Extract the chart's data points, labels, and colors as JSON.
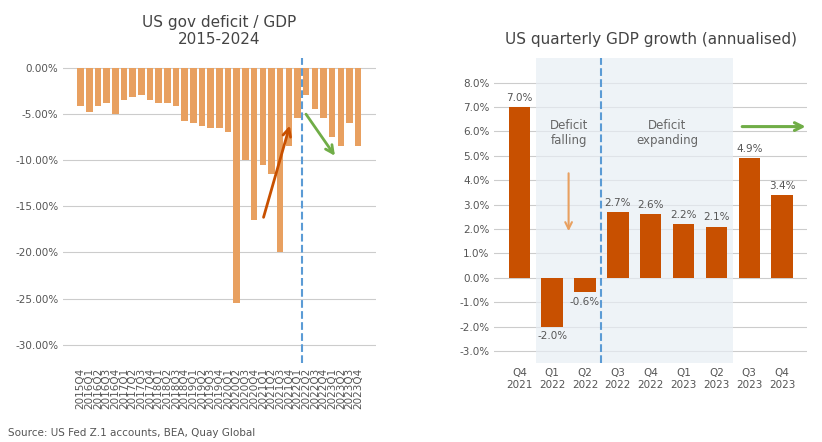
{
  "left_title": "US gov deficit / GDP\n2015-2024",
  "right_title": "US quarterly GDP growth (annualised)",
  "source_text": "Source: US Fed Z.1 accounts, BEA, Quay Global",
  "bar_color_left": "#E8A060",
  "bar_color_right": "#C85000",
  "left_categories": [
    "2015Q4",
    "2016Q1",
    "2016Q2",
    "2016Q3",
    "2016Q4",
    "2017Q1",
    "2017Q2",
    "2017Q3",
    "2017Q4",
    "2018Q1",
    "2018Q2",
    "2018Q3",
    "2018Q4",
    "2019Q1",
    "2019Q2",
    "2019Q3",
    "2019Q4",
    "2020Q1",
    "2020Q2",
    "2020Q3",
    "2020Q4",
    "2021Q1",
    "2021Q2",
    "2021Q3",
    "2021Q4",
    "2022Q1",
    "2022Q2",
    "2022Q3",
    "2022Q4",
    "2023Q1",
    "2023Q2",
    "2023Q3",
    "2023Q4"
  ],
  "left_values": [
    -4.2,
    -4.8,
    -4.2,
    -3.8,
    -5.0,
    -3.5,
    -3.2,
    -3.0,
    -3.5,
    -3.8,
    -3.8,
    -4.2,
    -5.8,
    -6.0,
    -6.3,
    -6.5,
    -6.5,
    -7.0,
    -25.5,
    -10.0,
    -16.5,
    -10.5,
    -11.5,
    -20.0,
    -8.5,
    -5.5,
    -3.0,
    -4.5,
    -5.5,
    -7.5,
    -8.5,
    -6.0,
    -8.5
  ],
  "left_ylim": [
    -32,
    1
  ],
  "left_yticks": [
    0,
    -5,
    -10,
    -15,
    -20,
    -25,
    -30
  ],
  "right_categories": [
    "Q4\n2021",
    "Q1\n2022",
    "Q2\n2022",
    "Q3\n2022",
    "Q4\n2022",
    "Q1\n2023",
    "Q2\n2023",
    "Q3\n2023",
    "Q4\n2023"
  ],
  "right_values": [
    7.0,
    -2.0,
    -0.6,
    2.7,
    2.6,
    2.2,
    2.1,
    4.9,
    3.4
  ],
  "right_labels": [
    "7.0%",
    "-2.0%",
    "-0.6%",
    "2.7%",
    "2.6%",
    "2.2%",
    "2.1%",
    "4.9%",
    "3.4%"
  ],
  "right_ylim": [
    -3.5,
    9.0
  ],
  "right_yticks": [
    -3.0,
    -2.0,
    -1.0,
    0.0,
    1.0,
    2.0,
    3.0,
    4.0,
    5.0,
    6.0,
    7.0,
    8.0
  ],
  "dashed_color": "#5B9BD5",
  "orange_arrow_color": "#C85000",
  "light_orange_arrow_color": "#E8A060",
  "green_arrow_color": "#70AD47",
  "light_gray_box": "#E8EEF4",
  "grid_color": "#CCCCCC",
  "title_fontsize": 11,
  "tick_fontsize": 7.5,
  "label_fontsize": 8,
  "text_color": "#555555"
}
